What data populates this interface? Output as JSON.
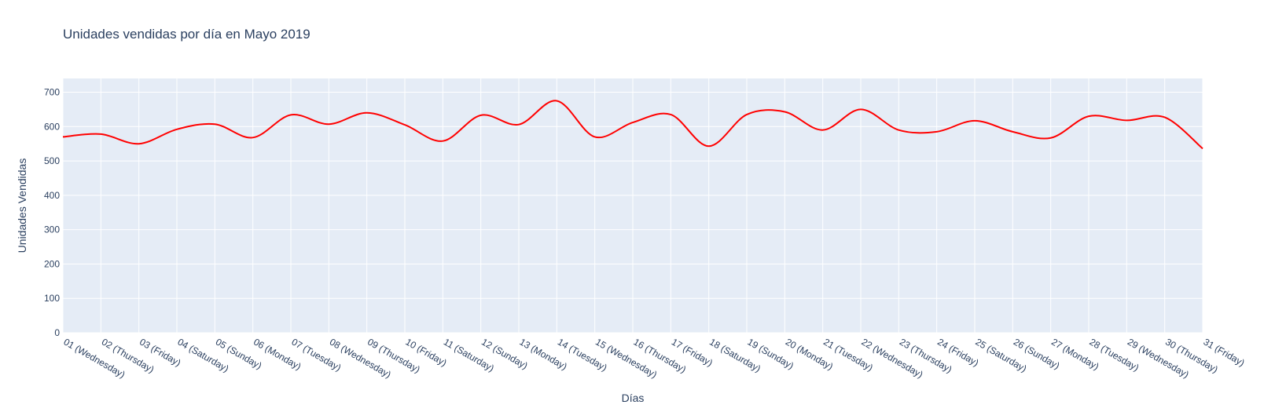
{
  "chart_data": {
    "type": "line",
    "title": "Unidades vendidas por día en Mayo 2019",
    "xlabel": "Días",
    "ylabel": "Unidades Vendidas",
    "ylim": [
      0,
      740
    ],
    "yticks": [
      0,
      100,
      200,
      300,
      400,
      500,
      600,
      700
    ],
    "grid": true,
    "line_shape": "spline",
    "colors": {
      "line": "#ff0000",
      "plot_bg": "#e5ecf6",
      "grid": "#ffffff",
      "text": "#2a3f5f"
    },
    "categories": [
      "01 (Wednesday)",
      "02 (Thursday)",
      "03 (Friday)",
      "04 (Saturday)",
      "05 (Sunday)",
      "06 (Monday)",
      "07 (Tuesday)",
      "08 (Wednesday)",
      "09 (Thursday)",
      "10 (Friday)",
      "11 (Saturday)",
      "12 (Sunday)",
      "13 (Monday)",
      "14 (Tuesday)",
      "15 (Wednesday)",
      "16 (Thursday)",
      "17 (Friday)",
      "18 (Saturday)",
      "19 (Sunday)",
      "20 (Monday)",
      "21 (Tuesday)",
      "22 (Wednesday)",
      "23 (Thursday)",
      "24 (Friday)",
      "25 (Saturday)",
      "26 (Sunday)",
      "27 (Monday)",
      "28 (Tuesday)",
      "29 (Wednesday)",
      "30 (Thursday)",
      "31 (Friday)"
    ],
    "series": [
      {
        "values": [
          570,
          578,
          550,
          592,
          607,
          568,
          634,
          607,
          640,
          605,
          558,
          633,
          606,
          675,
          570,
          612,
          635,
          543,
          635,
          643,
          590,
          650,
          590,
          585,
          617,
          585,
          567,
          630,
          618,
          627,
          536
        ]
      }
    ]
  }
}
